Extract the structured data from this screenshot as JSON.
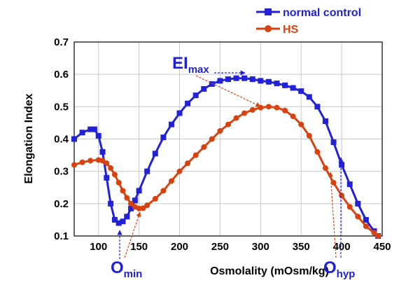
{
  "chart_data": {
    "type": "line",
    "title": "",
    "xlabel": "Osmolality (mOsm/kg)",
    "ylabel": "Elongation Index",
    "xlim": [
      70,
      450
    ],
    "ylim": [
      0.1,
      0.7
    ],
    "xticks": [
      100,
      150,
      200,
      250,
      300,
      350,
      400,
      450
    ],
    "yticks": [
      0.1,
      0.2,
      0.3,
      0.4,
      0.5,
      0.6,
      0.7
    ],
    "xtick_labels": [
      "100",
      "150",
      "200",
      "250",
      "300",
      "350",
      "400",
      "450"
    ],
    "ytick_labels": [
      "0.1",
      "0.2",
      "0.3",
      "0.4",
      "0.5",
      "0.6",
      "0.7"
    ],
    "grid": true,
    "legend_position": "top-right",
    "series": [
      {
        "name": "normal control",
        "color": "#2121d9",
        "marker": "square",
        "x": [
          70,
          80,
          90,
          95,
          100,
          105,
          110,
          115,
          120,
          125,
          130,
          135,
          140,
          145,
          150,
          160,
          170,
          180,
          190,
          200,
          210,
          220,
          230,
          240,
          250,
          260,
          270,
          280,
          290,
          300,
          310,
          320,
          330,
          340,
          350,
          360,
          370,
          380,
          390,
          400,
          410,
          420,
          430,
          440,
          445
        ],
        "y": [
          0.4,
          0.42,
          0.43,
          0.43,
          0.41,
          0.36,
          0.28,
          0.2,
          0.15,
          0.14,
          0.145,
          0.16,
          0.185,
          0.21,
          0.24,
          0.3,
          0.355,
          0.405,
          0.445,
          0.48,
          0.51,
          0.535,
          0.555,
          0.57,
          0.58,
          0.585,
          0.588,
          0.588,
          0.585,
          0.58,
          0.577,
          0.572,
          0.566,
          0.558,
          0.548,
          0.53,
          0.5,
          0.455,
          0.39,
          0.32,
          0.26,
          0.2,
          0.15,
          0.115,
          0.1
        ]
      },
      {
        "name": "HS",
        "color": "#d9420f",
        "marker": "circle",
        "x": [
          70,
          80,
          90,
          100,
          105,
          110,
          115,
          120,
          125,
          130,
          135,
          140,
          145,
          150,
          155,
          160,
          170,
          180,
          190,
          200,
          210,
          220,
          230,
          240,
          250,
          260,
          270,
          280,
          290,
          300,
          310,
          320,
          330,
          340,
          350,
          360,
          370,
          380,
          390,
          400,
          410,
          420,
          430,
          440,
          445
        ],
        "y": [
          0.32,
          0.328,
          0.333,
          0.335,
          0.333,
          0.325,
          0.31,
          0.29,
          0.265,
          0.24,
          0.218,
          0.2,
          0.19,
          0.185,
          0.186,
          0.195,
          0.215,
          0.24,
          0.27,
          0.3,
          0.325,
          0.35,
          0.375,
          0.4,
          0.425,
          0.445,
          0.465,
          0.48,
          0.49,
          0.497,
          0.5,
          0.497,
          0.488,
          0.47,
          0.445,
          0.41,
          0.36,
          0.31,
          0.265,
          0.225,
          0.19,
          0.16,
          0.13,
          0.11,
          0.1
        ]
      }
    ],
    "annotations": [
      {
        "main": "EI",
        "sub": "max"
      },
      {
        "main": "O",
        "sub": "min"
      },
      {
        "main": "O",
        "sub": "hyp"
      }
    ]
  }
}
